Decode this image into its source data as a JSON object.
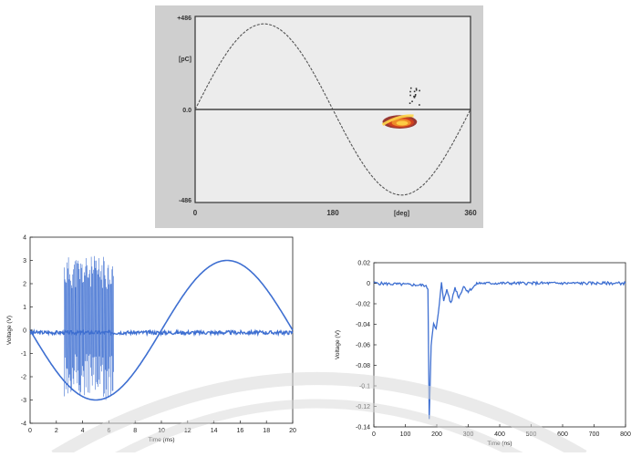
{
  "chart_data": [
    {
      "type": "line",
      "title": "",
      "xlabel": "[deg]",
      "ylabel": "[pC]",
      "xlim": [
        0,
        360
      ],
      "ylim": [
        -486,
        486
      ],
      "x_ticks": [
        "0",
        "180",
        "360"
      ],
      "y_ticks": [
        "+486",
        "0.0",
        "-486"
      ],
      "series": [
        {
          "kind": "sine-reference",
          "amplitude": 486,
          "period_deg": 360
        }
      ],
      "pd_cluster": {
        "x_range": [
          245,
          290
        ],
        "y_range": [
          -100,
          -30
        ],
        "colors": [
          "#ffd84a",
          "#f39a2a",
          "#d9421c",
          "#8b1a12"
        ]
      },
      "colors": {
        "background": "#ececec",
        "border": "#333333",
        "frame": "#cfcfcf"
      }
    },
    {
      "type": "line",
      "title": "",
      "xlabel": "Time (ms)",
      "ylabel": "Voltage (V)",
      "xlim": [
        0,
        20
      ],
      "ylim": [
        -4,
        4
      ],
      "x_ticks": [
        "0",
        "2",
        "4",
        "6",
        "8",
        "10",
        "12",
        "14",
        "16",
        "18",
        "20"
      ],
      "y_ticks": [
        "4",
        "3",
        "2",
        "1",
        "0",
        "-1",
        "-2",
        "-3",
        "-4"
      ],
      "series": [
        {
          "kind": "sine",
          "amplitude": 3.0,
          "period_ms": 20,
          "phase": "starts at 0 going negative"
        },
        {
          "kind": "baseline-noise",
          "level": -0.1,
          "noise": 0.08
        },
        {
          "kind": "pd-burst",
          "x_range": [
            2.6,
            6.4
          ],
          "max_amplitude": 3.2
        }
      ],
      "colors": {
        "line": "#3e6fd1"
      }
    },
    {
      "type": "line",
      "title": "",
      "xlabel": "Time (ns)",
      "ylabel": "Voltage (V)",
      "xlim": [
        0,
        800
      ],
      "ylim": [
        -0.14,
        0.02
      ],
      "x_ticks": [
        "0",
        "100",
        "200",
        "300",
        "400",
        "500",
        "600",
        "700",
        "800"
      ],
      "y_ticks": [
        "0.02",
        "0",
        "-0.02",
        "-0.04",
        "-0.06",
        "-0.08",
        "-0.1",
        "-0.12",
        "-0.14"
      ],
      "series": [
        {
          "kind": "pulse",
          "points": [
            [
              0,
              0
            ],
            [
              160,
              -0.002
            ],
            [
              172,
              -0.005
            ],
            [
              176,
              -0.132
            ],
            [
              182,
              -0.06
            ],
            [
              190,
              -0.04
            ],
            [
              198,
              -0.045
            ],
            [
              205,
              -0.03
            ],
            [
              215,
              0.002
            ],
            [
              222,
              -0.018
            ],
            [
              232,
              -0.006
            ],
            [
              245,
              -0.02
            ],
            [
              258,
              -0.004
            ],
            [
              270,
              -0.014
            ],
            [
              285,
              -0.003
            ],
            [
              300,
              -0.008
            ],
            [
              330,
              0.0
            ],
            [
              800,
              0.0
            ]
          ]
        }
      ],
      "colors": {
        "line": "#3e6fd1"
      }
    }
  ]
}
